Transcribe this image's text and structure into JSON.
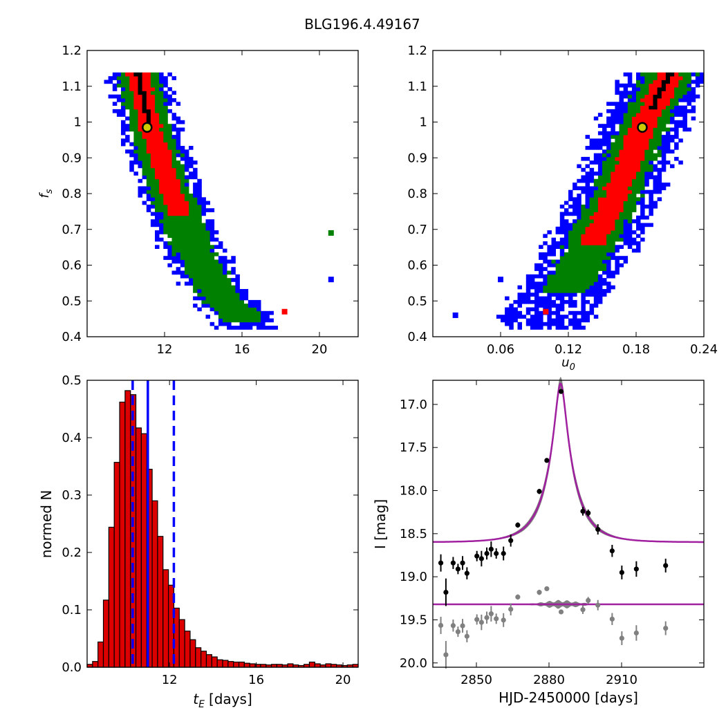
{
  "title": "BLG196.4.49167",
  "colors": {
    "level1": "#000000",
    "level2": "#ff0000",
    "level3": "#008000",
    "level4": "#0000ff",
    "hist_fill": "#dd0000",
    "median_line": "#0000ff",
    "model": "#a020a0",
    "samples": "#808080",
    "best_fit_marker": "#cccc00"
  },
  "chart_data": [
    {
      "id": "fs-vs-tE",
      "type": "heatmap",
      "xlabel": "",
      "ylabel": "f_s",
      "xlim": [
        8,
        22
      ],
      "ylim": [
        0.4,
        1.2
      ],
      "xticks": [
        12,
        16,
        20
      ],
      "yticks": [
        0.4,
        0.5,
        0.6,
        0.7,
        0.8,
        0.9,
        1.0,
        1.1,
        1.2
      ],
      "best_fit": [
        11.1,
        0.985
      ],
      "band_centerline": [
        [
          10.6,
          1.14
        ],
        [
          11.3,
          0.98
        ],
        [
          12.4,
          0.8
        ],
        [
          13.4,
          0.65
        ],
        [
          14.8,
          0.52
        ],
        [
          16.2,
          0.44
        ]
      ],
      "levels": [
        {
          "name": "black",
          "half_width": 0.12,
          "y_range": [
            1.0,
            1.14
          ]
        },
        {
          "name": "red",
          "half_width": 0.55,
          "y_range": [
            0.74,
            1.14
          ]
        },
        {
          "name": "green",
          "half_width": 1.05,
          "y_range": [
            0.44,
            1.14
          ]
        },
        {
          "name": "blue",
          "half_width": 1.6,
          "y_range": [
            0.42,
            1.14
          ]
        }
      ],
      "outlier_islands": [
        [
          18.2,
          0.47,
          "red"
        ],
        [
          20.6,
          0.69,
          "green"
        ],
        [
          20.6,
          0.56,
          "blue"
        ]
      ]
    },
    {
      "id": "fs-vs-u0",
      "type": "heatmap",
      "xlabel": "u_0",
      "ylabel": "",
      "xlim": [
        0.0,
        0.24
      ],
      "ylim": [
        0.4,
        1.2
      ],
      "xticks": [
        "0.06",
        "0.12",
        "0.18",
        "0.24"
      ],
      "yticks": [
        0.4,
        0.5,
        0.6,
        0.7,
        0.8,
        0.9,
        1.0,
        1.1,
        1.2
      ],
      "best_fit": [
        0.1855,
        0.985
      ],
      "band_centerline": [
        [
          0.098,
          0.44
        ],
        [
          0.13,
          0.6
        ],
        [
          0.16,
          0.78
        ],
        [
          0.185,
          0.98
        ],
        [
          0.21,
          1.14
        ]
      ],
      "levels": [
        {
          "name": "black",
          "half_width": 0.003,
          "y_range": [
            1.04,
            1.14
          ]
        },
        {
          "name": "red",
          "half_width": 0.011,
          "y_range": [
            0.66,
            1.14
          ]
        },
        {
          "name": "green",
          "half_width": 0.022,
          "y_range": [
            0.52,
            1.14
          ]
        },
        {
          "name": "blue",
          "half_width": 0.04,
          "y_range": [
            0.42,
            1.14
          ]
        }
      ],
      "outlier_islands": [
        [
          0.1,
          0.47,
          "red"
        ],
        [
          0.02,
          0.46,
          "blue"
        ],
        [
          0.06,
          0.56,
          "blue"
        ]
      ]
    },
    {
      "id": "tE-histogram",
      "type": "bar",
      "xlabel": "t_E",
      "xlabel_suffix": "[days]",
      "ylabel": "normed N",
      "xlim": [
        8.2,
        20.7
      ],
      "ylim": [
        0.0,
        0.5
      ],
      "xticks": [
        12,
        16,
        20
      ],
      "yticks": [
        "0.0",
        "0.1",
        "0.2",
        "0.3",
        "0.4",
        "0.5"
      ],
      "bin_start": 8.2,
      "bin_width": 0.25,
      "values": [
        0.005,
        0.01,
        0.044,
        0.117,
        0.244,
        0.357,
        0.462,
        0.482,
        0.475,
        0.417,
        0.407,
        0.345,
        0.29,
        0.228,
        0.17,
        0.143,
        0.103,
        0.083,
        0.063,
        0.048,
        0.034,
        0.028,
        0.022,
        0.018,
        0.013,
        0.012,
        0.01,
        0.009,
        0.009,
        0.007,
        0.006,
        0.005,
        0.005,
        0.004,
        0.005,
        0.005,
        0.004,
        0.006,
        0.004,
        0.003,
        0.005,
        0.009,
        0.006,
        0.004,
        0.006,
        0.005,
        0.004,
        0.003,
        0.004,
        0.005
      ],
      "vlines": [
        {
          "x": 10.3,
          "style": "dashed"
        },
        {
          "x": 11.0,
          "style": "solid"
        },
        {
          "x": 12.2,
          "style": "dashed"
        }
      ]
    },
    {
      "id": "light-curve",
      "type": "scatter",
      "xlabel": "HJD-2450000 [days]",
      "ylabel": "I [mag]",
      "xlim": [
        2832,
        2944
      ],
      "ylim": [
        20.05,
        16.72
      ],
      "xticks": [
        2850,
        2880,
        2910
      ],
      "yticks": [
        "17.0",
        "17.5",
        "18.0",
        "18.5",
        "19.0",
        "19.5",
        "20.0"
      ],
      "model": {
        "t0": 2884.8,
        "u0": 0.1855,
        "tE": 11.1,
        "base_mag": 18.6
      },
      "residual_offset": 19.32,
      "points": [
        {
          "t": 2835.3,
          "mag": 18.84,
          "err": 0.1
        },
        {
          "t": 2837.4,
          "mag": 19.18,
          "err": 0.16
        },
        {
          "t": 2840.4,
          "mag": 18.84,
          "err": 0.07
        },
        {
          "t": 2842.4,
          "mag": 18.91,
          "err": 0.06
        },
        {
          "t": 2844.3,
          "mag": 18.84,
          "err": 0.08
        },
        {
          "t": 2846.1,
          "mag": 18.96,
          "err": 0.07
        },
        {
          "t": 2850.2,
          "mag": 18.76,
          "err": 0.06
        },
        {
          "t": 2852.1,
          "mag": 18.79,
          "err": 0.09
        },
        {
          "t": 2854.3,
          "mag": 18.73,
          "err": 0.07
        },
        {
          "t": 2856.1,
          "mag": 18.68,
          "err": 0.09
        },
        {
          "t": 2858.2,
          "mag": 18.73,
          "err": 0.06
        },
        {
          "t": 2861.2,
          "mag": 18.73,
          "err": 0.08
        },
        {
          "t": 2864.2,
          "mag": 18.58,
          "err": 0.07
        },
        {
          "t": 2867.1,
          "mag": 18.4,
          "err": 0.03
        },
        {
          "t": 2876.0,
          "mag": 18.01,
          "err": 0.03
        },
        {
          "t": 2879.1,
          "mag": 17.65,
          "err": 0.02
        },
        {
          "t": 2885.0,
          "mag": 16.85,
          "err": 0.02
        },
        {
          "t": 2894.0,
          "mag": 18.24,
          "err": 0.05
        },
        {
          "t": 2896.2,
          "mag": 18.26,
          "err": 0.04
        },
        {
          "t": 2900.2,
          "mag": 18.45,
          "err": 0.06
        },
        {
          "t": 2906.1,
          "mag": 18.7,
          "err": 0.07
        },
        {
          "t": 2910.1,
          "mag": 18.95,
          "err": 0.08
        },
        {
          "t": 2916.1,
          "mag": 18.91,
          "err": 0.09
        },
        {
          "t": 2928.2,
          "mag": 18.87,
          "err": 0.08
        }
      ]
    }
  ]
}
